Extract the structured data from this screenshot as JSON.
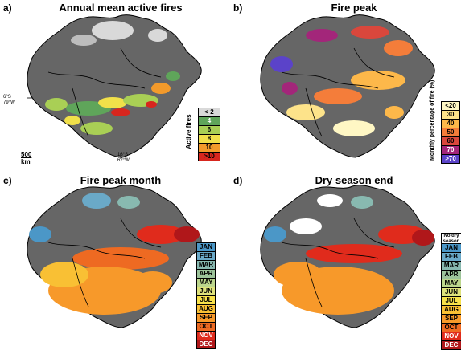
{
  "panels": [
    {
      "label": "a)",
      "title": "Annual mean active fires",
      "legend_title": "Active fires",
      "legend": [
        {
          "text": "< 2",
          "color": "#d9d9d9"
        },
        {
          "text": "4",
          "color": "#5fa55a"
        },
        {
          "text": "6",
          "color": "#a9cf55"
        },
        {
          "text": "8",
          "color": "#f1e04a"
        },
        {
          "text": "10",
          "color": "#f39a2b"
        },
        {
          "text": ">10",
          "color": "#d7261e"
        }
      ]
    },
    {
      "label": "b)",
      "title": "Fire peak",
      "legend_title": "Monthly percentage of fire (%)",
      "legend": [
        {
          "text": "<20",
          "color": "#fff7c4"
        },
        {
          "text": "30",
          "color": "#fde38a"
        },
        {
          "text": "40",
          "color": "#fdb84a"
        },
        {
          "text": "50",
          "color": "#f47d3a"
        },
        {
          "text": "60",
          "color": "#d9473c"
        },
        {
          "text": "70",
          "color": "#a3267a"
        },
        {
          "text": ">70",
          "color": "#5b43c9"
        }
      ]
    },
    {
      "label": "c)",
      "title": "Fire peak month",
      "legend_title": "",
      "legend": [
        {
          "text": "JAN",
          "color": "#4b97c7"
        },
        {
          "text": "FEB",
          "color": "#6aa9c8"
        },
        {
          "text": "MAR",
          "color": "#88b9b0"
        },
        {
          "text": "APR",
          "color": "#9cc39a"
        },
        {
          "text": "MAY",
          "color": "#bcd68d"
        },
        {
          "text": "JUN",
          "color": "#dee27c"
        },
        {
          "text": "JUL",
          "color": "#f7e14a"
        },
        {
          "text": "AUG",
          "color": "#f9c034"
        },
        {
          "text": "SEP",
          "color": "#f7992a"
        },
        {
          "text": "OCT",
          "color": "#ee6a22"
        },
        {
          "text": "NOV",
          "color": "#e02b1c"
        },
        {
          "text": "DEC",
          "color": "#b0171a"
        }
      ]
    },
    {
      "label": "d)",
      "title": "Dry season end",
      "legend_title": "",
      "no_dry_season": "No dry season",
      "legend": [
        {
          "text": "JAN",
          "color": "#4b97c7"
        },
        {
          "text": "FEB",
          "color": "#6aa9c8"
        },
        {
          "text": "MAR",
          "color": "#88b9b0"
        },
        {
          "text": "APR",
          "color": "#9cc39a"
        },
        {
          "text": "MAY",
          "color": "#bcd68d"
        },
        {
          "text": "JUN",
          "color": "#dee27c"
        },
        {
          "text": "JUL",
          "color": "#f7e14a"
        },
        {
          "text": "AUG",
          "color": "#f9c034"
        },
        {
          "text": "SEP",
          "color": "#f7992a"
        },
        {
          "text": "OCT",
          "color": "#ee6a22"
        },
        {
          "text": "NOV",
          "color": "#e02b1c"
        },
        {
          "text": "DEC",
          "color": "#b0171a"
        }
      ]
    }
  ],
  "annotations": {
    "west_lat": "6°S",
    "west_lon": "79°W",
    "south_lat": "18°S",
    "south_lon": "62°W",
    "scale": "500 km"
  },
  "colors": {
    "land": "#666666",
    "border": "#000000"
  }
}
